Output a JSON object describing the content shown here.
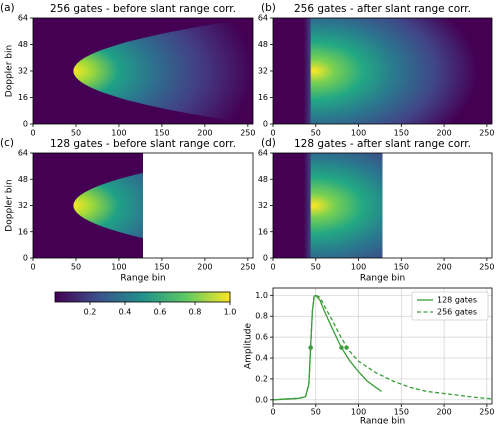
{
  "chart_data": [
    {
      "type": "heatmap",
      "panel": "(a)",
      "title": "256 gates - before slant range corr.",
      "ylabel": "Doppler bin",
      "range_extent": 256,
      "xlim": [
        0,
        256
      ],
      "ylim": [
        0,
        64
      ],
      "xticks": [
        0,
        50,
        100,
        150,
        200,
        250
      ],
      "yticks": [
        0,
        16,
        32,
        48,
        64
      ]
    },
    {
      "type": "heatmap",
      "panel": "(b)",
      "title": "256 gates - after slant range corr.",
      "range_extent": 256,
      "xlim": [
        0,
        256
      ],
      "ylim": [
        0,
        64
      ],
      "xticks": [
        0,
        50,
        100,
        150,
        200,
        250
      ],
      "yticks": [
        0,
        16,
        32,
        48,
        64
      ]
    },
    {
      "type": "heatmap",
      "panel": "(c)",
      "title": "128 gates - before slant range corr.",
      "xlabel": "Range bin",
      "ylabel": "Doppler bin",
      "range_extent": 128,
      "xlim": [
        0,
        256
      ],
      "ylim": [
        0,
        64
      ],
      "xticks": [
        0,
        50,
        100,
        150,
        200,
        250
      ],
      "yticks": [
        0,
        16,
        32,
        48,
        64
      ]
    },
    {
      "type": "heatmap",
      "panel": "(d)",
      "title": "128 gates - after slant range corr.",
      "xlabel": "Range bin",
      "range_extent": 128,
      "xlim": [
        0,
        256
      ],
      "ylim": [
        0,
        64
      ],
      "xticks": [
        0,
        50,
        100,
        150,
        200,
        250
      ],
      "yticks": [
        0,
        16,
        32,
        48,
        64
      ]
    },
    {
      "type": "colorbar",
      "clim": [
        0,
        1
      ],
      "ticks": [
        0.2,
        0.4,
        0.6,
        0.8,
        {
          "value": 1,
          "label": "1.0"
        }
      ]
    },
    {
      "type": "line",
      "xlabel": "Range bin",
      "ylabel": "Amplitude",
      "grid": true,
      "legend": "upper right",
      "xlim": [
        0,
        256
      ],
      "ylim": [
        -0.04,
        1.07
      ],
      "xticks": [
        0,
        50,
        100,
        150,
        200,
        250
      ],
      "yticks": [
        {
          "value": 0,
          "label": "0.0"
        },
        {
          "value": 0.2,
          "label": "0.2"
        },
        {
          "value": 0.4,
          "label": "0.4"
        },
        {
          "value": 0.6,
          "label": "0.6"
        },
        {
          "value": 0.8,
          "label": "0.8"
        },
        {
          "value": 1,
          "label": "1.0"
        }
      ],
      "series": [
        {
          "name": "128 gates",
          "color": "#3a9e3a",
          "dash": "solid",
          "x": [
            0,
            10,
            20,
            30,
            38,
            42,
            44,
            46,
            48,
            50,
            55,
            60,
            70,
            80,
            90,
            100,
            110,
            120,
            127
          ],
          "values": [
            0,
            0.005,
            0.01,
            0.015,
            0.03,
            0.15,
            0.5,
            0.85,
            0.99,
            1.0,
            0.95,
            0.85,
            0.67,
            0.5,
            0.37,
            0.27,
            0.18,
            0.12,
            0.08
          ],
          "points": {
            "x": [
              44,
              80
            ],
            "values": [
              0.5,
              0.5
            ]
          }
        },
        {
          "name": "256 gates",
          "color": "#3a9e3a",
          "dash": "dashed",
          "x": [
            0,
            10,
            20,
            30,
            38,
            42,
            44,
            46,
            48,
            50,
            55,
            60,
            70,
            80,
            90,
            100,
            120,
            140,
            160,
            180,
            200,
            220,
            240,
            256
          ],
          "values": [
            0,
            0.005,
            0.01,
            0.015,
            0.03,
            0.15,
            0.5,
            0.85,
            0.99,
            1.0,
            0.98,
            0.9,
            0.75,
            0.59,
            0.46,
            0.37,
            0.26,
            0.18,
            0.12,
            0.08,
            0.06,
            0.04,
            0.02,
            0.01
          ],
          "points": {
            "x": [
              44,
              86
            ],
            "values": [
              0.5,
              0.5
            ]
          }
        }
      ]
    }
  ]
}
